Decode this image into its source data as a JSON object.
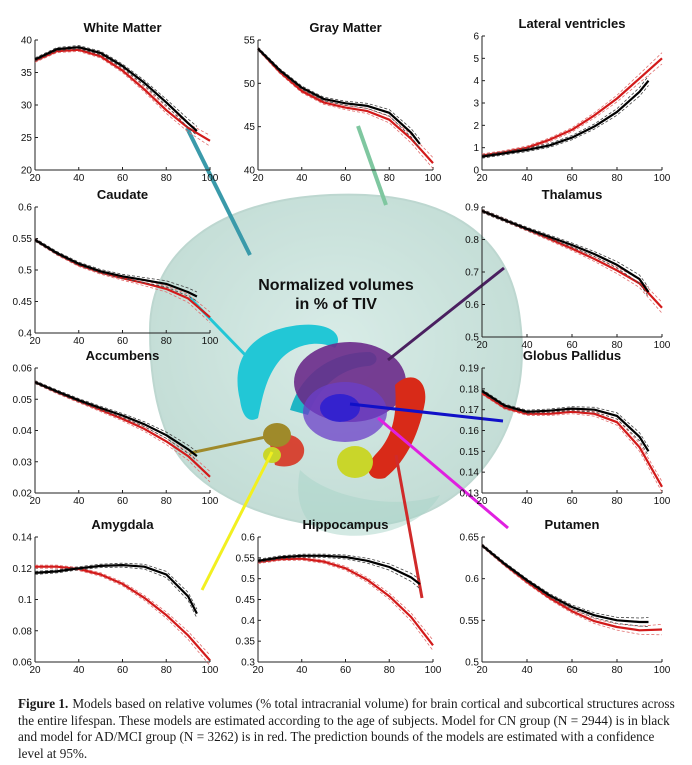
{
  "center_title_lines": [
    "Normalized volumes",
    "in % of TIV"
  ],
  "caption": {
    "label": "Figure 1.",
    "text": "Models based on relative volumes (% total intracranial volume) for brain cortical and subcortical structures across the entire lifespan. These models are estimated according to the age of subjects. Model for CN group (N = 2944) is in black and model for AD/MCI group (N = 3262) is in red. The prediction bounds of the models are estimated with a confidence level at 95%."
  },
  "colors": {
    "cn_model": "#000000",
    "ad_mci_model": "#d21a1a",
    "bounds": "#555555",
    "brain_glass": "#9fcfc4",
    "caudate": "#22c7d6",
    "thalamus": "#6a2a8a",
    "putamen": "#6b3fc8",
    "globus_pallidus": "#2e1fd0",
    "hippocampus": "#d82a18",
    "amygdala": "#c9d62a",
    "accumbens": "#9f8a2a"
  },
  "chart_data": [
    {
      "type": "line",
      "title": "White Matter",
      "xticks": [
        20,
        40,
        60,
        80,
        100
      ],
      "yticks": [
        "20",
        "25",
        "30",
        "35",
        "40"
      ],
      "xlim": [
        20,
        100
      ],
      "ylim": [
        20,
        40
      ],
      "series": [
        {
          "x": [
            20,
            30,
            40,
            50,
            60,
            70,
            80,
            90,
            94
          ],
          "values": [
            37.0,
            38.6,
            38.9,
            38.0,
            36.0,
            33.4,
            30.4,
            27.2,
            26.0
          ]
        },
        {
          "x": [
            20,
            30,
            40,
            50,
            60,
            70,
            80,
            90,
            100
          ],
          "values": [
            36.8,
            38.3,
            38.5,
            37.5,
            35.3,
            32.4,
            29.2,
            26.5,
            24.5
          ]
        }
      ]
    },
    {
      "type": "line",
      "title": "Gray Matter",
      "xticks": [
        20,
        40,
        60,
        80,
        100
      ],
      "yticks": [
        "40",
        "45",
        "50",
        "55"
      ],
      "xlim": [
        20,
        100
      ],
      "ylim": [
        40,
        55
      ],
      "series": [
        {
          "x": [
            20,
            30,
            40,
            50,
            60,
            70,
            80,
            90,
            94
          ],
          "values": [
            54.0,
            51.5,
            49.5,
            48.2,
            47.7,
            47.4,
            46.6,
            44.3,
            43.0
          ]
        },
        {
          "x": [
            20,
            30,
            40,
            50,
            60,
            70,
            80,
            90,
            100
          ],
          "values": [
            54.0,
            51.3,
            49.1,
            47.8,
            47.2,
            46.8,
            45.8,
            43.6,
            40.8
          ]
        }
      ]
    },
    {
      "type": "line",
      "title": "Lateral ventricles",
      "xticks": [
        20,
        40,
        60,
        80,
        100
      ],
      "yticks": [
        "0",
        "1",
        "2",
        "3",
        "4",
        "5",
        "6"
      ],
      "xlim": [
        20,
        100
      ],
      "ylim": [
        0,
        6
      ],
      "series": [
        {
          "x": [
            20,
            30,
            40,
            50,
            60,
            70,
            80,
            90,
            94
          ],
          "values": [
            0.6,
            0.75,
            0.9,
            1.1,
            1.45,
            1.95,
            2.6,
            3.5,
            4.0
          ]
        },
        {
          "x": [
            20,
            30,
            40,
            50,
            60,
            70,
            80,
            90,
            100
          ],
          "values": [
            0.65,
            0.8,
            1.0,
            1.35,
            1.8,
            2.45,
            3.2,
            4.1,
            5.0
          ]
        }
      ]
    },
    {
      "type": "line",
      "title": "Caudate",
      "xticks": [
        20,
        40,
        60,
        80,
        100
      ],
      "yticks": [
        "0.4",
        "0.45",
        "0.5",
        "0.55",
        "0.6"
      ],
      "xlim": [
        20,
        100
      ],
      "ylim": [
        0.4,
        0.6
      ],
      "series": [
        {
          "x": [
            20,
            30,
            40,
            50,
            60,
            70,
            80,
            90,
            94
          ],
          "values": [
            0.548,
            0.527,
            0.51,
            0.498,
            0.49,
            0.484,
            0.478,
            0.465,
            0.458
          ]
        },
        {
          "x": [
            20,
            30,
            40,
            50,
            60,
            70,
            80,
            90,
            100
          ],
          "values": [
            0.548,
            0.526,
            0.508,
            0.496,
            0.487,
            0.479,
            0.47,
            0.455,
            0.425
          ]
        }
      ]
    },
    {
      "type": "line",
      "title": "Thalamus",
      "xticks": [
        20,
        40,
        60,
        80,
        100
      ],
      "yticks": [
        "0.5",
        "0.6",
        "0.7",
        "0.8",
        "0.9"
      ],
      "xlim": [
        20,
        100
      ],
      "ylim": [
        0.5,
        0.9
      ],
      "series": [
        {
          "x": [
            20,
            30,
            40,
            50,
            60,
            70,
            80,
            90,
            94
          ],
          "values": [
            0.888,
            0.86,
            0.833,
            0.808,
            0.783,
            0.755,
            0.722,
            0.678,
            0.638
          ]
        },
        {
          "x": [
            20,
            30,
            40,
            50,
            60,
            70,
            80,
            90,
            100
          ],
          "values": [
            0.888,
            0.86,
            0.831,
            0.802,
            0.772,
            0.74,
            0.705,
            0.665,
            0.59
          ]
        }
      ]
    },
    {
      "type": "line",
      "title": "Accumbens",
      "xticks": [
        20,
        40,
        60,
        80,
        100
      ],
      "yticks": [
        "0.02",
        "0.03",
        "0.04",
        "0.05",
        "0.06"
      ],
      "xlim": [
        20,
        100
      ],
      "ylim": [
        0.02,
        0.06
      ],
      "series": [
        {
          "x": [
            20,
            30,
            40,
            50,
            60,
            70,
            80,
            90,
            94
          ],
          "values": [
            0.0555,
            0.0525,
            0.0497,
            0.0472,
            0.0448,
            0.042,
            0.0385,
            0.034,
            0.0318
          ]
        },
        {
          "x": [
            20,
            30,
            40,
            50,
            60,
            70,
            80,
            90,
            100
          ],
          "values": [
            0.0555,
            0.0523,
            0.0494,
            0.0466,
            0.0437,
            0.0405,
            0.0365,
            0.0318,
            0.0252
          ]
        }
      ]
    },
    {
      "type": "line",
      "title": "Globus Pallidus",
      "xticks": [
        20,
        40,
        60,
        80,
        100
      ],
      "yticks": [
        "0.13",
        "0.14",
        "0.15",
        "0.16",
        "0.17",
        "0.18",
        "0.19"
      ],
      "xlim": [
        20,
        100
      ],
      "ylim": [
        0.13,
        0.19
      ],
      "series": [
        {
          "x": [
            20,
            30,
            40,
            50,
            60,
            70,
            80,
            90,
            94
          ],
          "values": [
            0.179,
            0.172,
            0.169,
            0.1695,
            0.1705,
            0.17,
            0.167,
            0.157,
            0.15
          ]
        },
        {
          "x": [
            20,
            30,
            40,
            50,
            60,
            70,
            80,
            90,
            100
          ],
          "values": [
            0.178,
            0.171,
            0.168,
            0.168,
            0.169,
            0.168,
            0.164,
            0.152,
            0.133
          ]
        }
      ]
    },
    {
      "type": "line",
      "title": "Amygdala",
      "xticks": [
        20,
        40,
        60,
        80,
        100
      ],
      "yticks": [
        "0.06",
        "0.08",
        "0.1",
        "0.12",
        "0.14"
      ],
      "xlim": [
        20,
        100
      ],
      "ylim": [
        0.06,
        0.14
      ],
      "series": [
        {
          "x": [
            20,
            30,
            40,
            50,
            60,
            70,
            80,
            90,
            94
          ],
          "values": [
            0.117,
            0.118,
            0.12,
            0.1215,
            0.122,
            0.121,
            0.116,
            0.102,
            0.091
          ]
        },
        {
          "x": [
            20,
            30,
            40,
            50,
            60,
            70,
            80,
            90,
            100
          ],
          "values": [
            0.121,
            0.121,
            0.1195,
            0.116,
            0.11,
            0.101,
            0.09,
            0.077,
            0.061
          ]
        }
      ]
    },
    {
      "type": "line",
      "title": "Hippocampus",
      "xticks": [
        20,
        40,
        60,
        80,
        100
      ],
      "yticks": [
        "0.3",
        "0.35",
        "0.4",
        "0.45",
        "0.5",
        "0.55",
        "0.6"
      ],
      "xlim": [
        20,
        100
      ],
      "ylim": [
        0.3,
        0.6
      ],
      "series": [
        {
          "x": [
            20,
            30,
            40,
            50,
            60,
            70,
            80,
            90,
            94
          ],
          "values": [
            0.543,
            0.551,
            0.555,
            0.555,
            0.552,
            0.543,
            0.528,
            0.503,
            0.487
          ]
        },
        {
          "x": [
            20,
            30,
            40,
            50,
            60,
            70,
            80,
            90,
            100
          ],
          "values": [
            0.54,
            0.547,
            0.548,
            0.541,
            0.525,
            0.497,
            0.458,
            0.408,
            0.34
          ]
        }
      ]
    },
    {
      "type": "line",
      "title": "Putamen",
      "xticks": [
        20,
        40,
        60,
        80,
        100
      ],
      "yticks": [
        "0.5",
        "0.55",
        "0.6",
        "0.65"
      ],
      "xlim": [
        20,
        100
      ],
      "ylim": [
        0.5,
        0.65
      ],
      "series": [
        {
          "x": [
            20,
            30,
            40,
            50,
            60,
            70,
            80,
            90,
            94
          ],
          "values": [
            0.64,
            0.618,
            0.598,
            0.58,
            0.566,
            0.556,
            0.55,
            0.548,
            0.548
          ]
        },
        {
          "x": [
            20,
            30,
            40,
            50,
            60,
            70,
            80,
            90,
            100
          ],
          "values": [
            0.64,
            0.617,
            0.596,
            0.577,
            0.561,
            0.549,
            0.542,
            0.538,
            0.539
          ]
        }
      ]
    }
  ]
}
